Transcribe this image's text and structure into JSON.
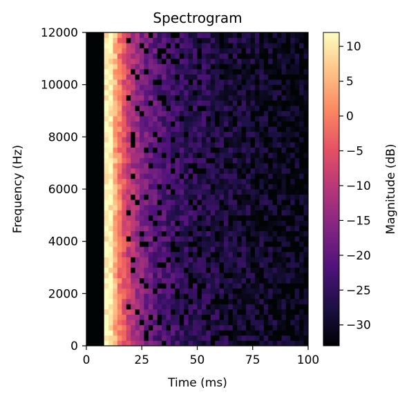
{
  "chart_data": {
    "type": "heatmap",
    "title": "Spectrogram",
    "xlabel": "Time (ms)",
    "ylabel": "Frequency (Hz)",
    "xlim": [
      0,
      100
    ],
    "ylim": [
      0,
      12000
    ],
    "x_ticks": [
      0,
      25,
      50,
      75,
      100
    ],
    "y_ticks": [
      0,
      2000,
      4000,
      6000,
      8000,
      10000,
      12000
    ],
    "colorbar": {
      "label": "Magnitude (dB)",
      "colormap": "magma",
      "range": [
        -33,
        12
      ],
      "ticks": [
        10,
        5,
        0,
        -5,
        -10,
        -15,
        -20,
        -25,
        -30
      ],
      "tick_labels": [
        "10",
        "5",
        "0",
        "−5",
        "−10",
        "−15",
        "−20",
        "−25",
        "−30"
      ]
    },
    "grid": false,
    "time_bins": 50,
    "freq_bins": 60,
    "time_bin_width_ms": 2,
    "freq_bin_width_hz": 200,
    "silent_until_ms": 8,
    "onset_peak_ms": 11,
    "magnitude_model_db": {
      "onset_peak": 8,
      "decay_to": -26,
      "noise_spread": 4,
      "dropout_level": -33
    }
  }
}
